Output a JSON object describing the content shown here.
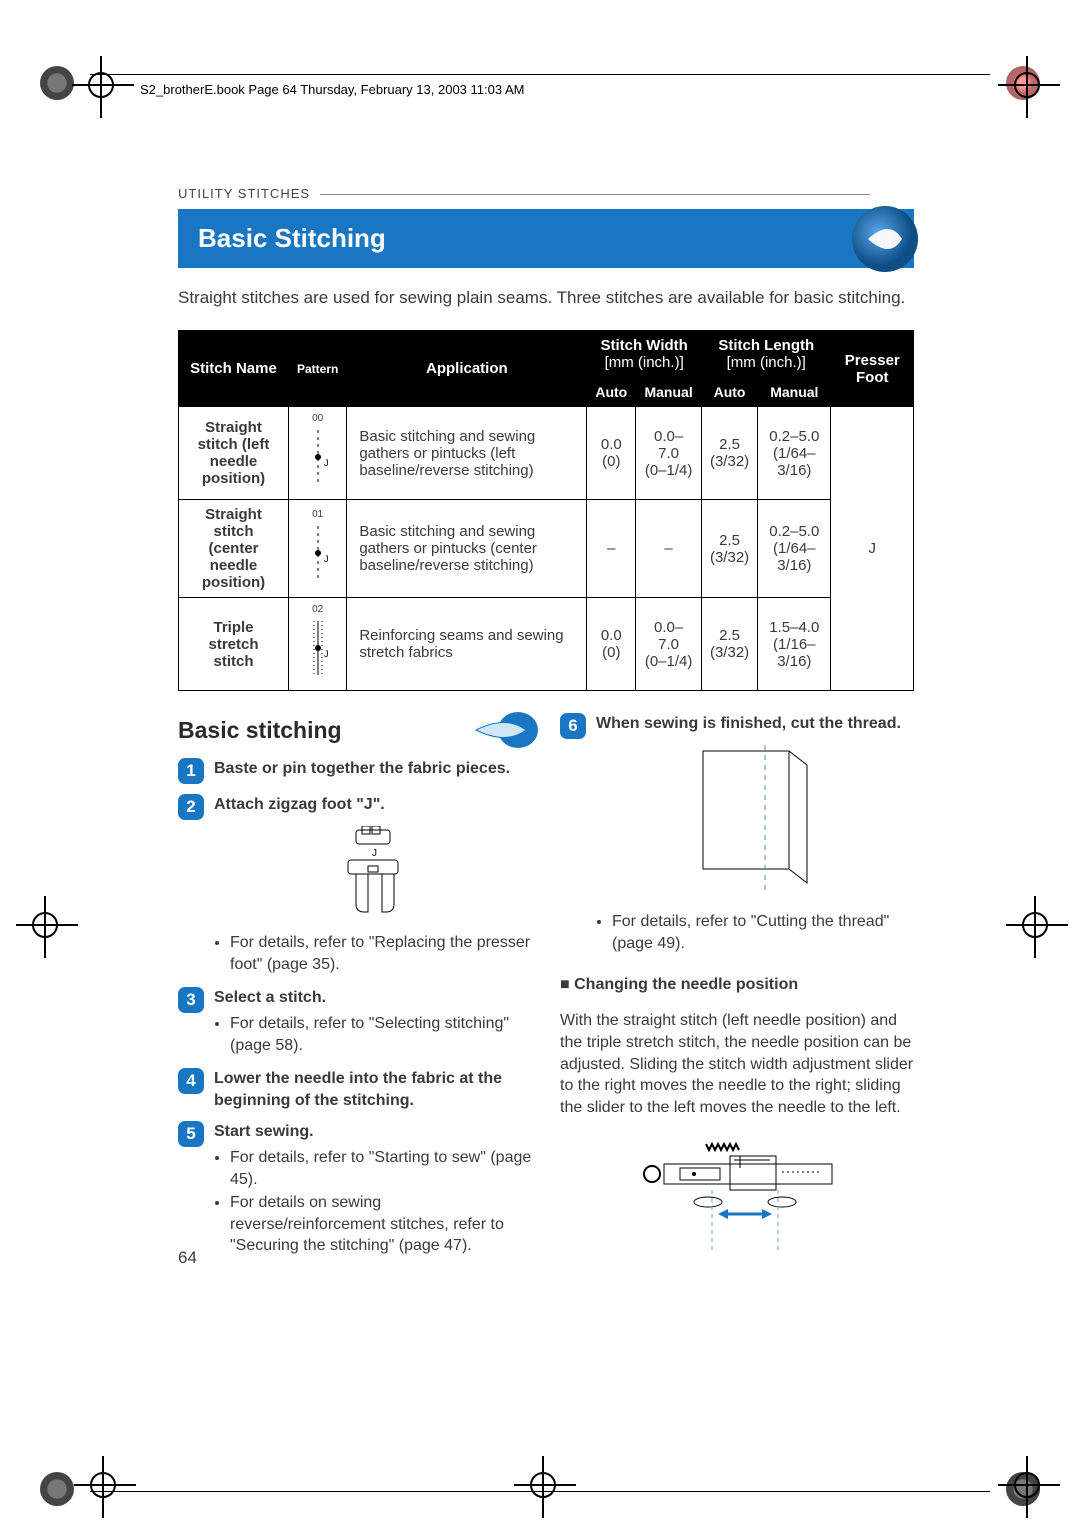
{
  "colors": {
    "blue": "#1976c2",
    "ink": "#3a3a3a"
  },
  "bookline": "S2_brotherE.book  Page 64  Thursday, February 13, 2003  11:03 AM",
  "crumb": "UTILITY STITCHES",
  "title": "Basic Stitching",
  "intro": "Straight stitches are used for sewing plain seams. Three stitches are available for basic stitching.",
  "table": {
    "headers": {
      "name": "Stitch Name",
      "pattern": "Pattern",
      "application": "Application",
      "width": "Stitch Width",
      "width_unit": "[mm (inch.)]",
      "length": "Stitch Length",
      "length_unit": "[mm (inch.)]",
      "foot": "Presser Foot",
      "auto": "Auto",
      "manual": "Manual"
    },
    "presser_foot": "J",
    "rows": [
      {
        "name": "Straight stitch (left needle position)",
        "pat_num": "00",
        "app": "Basic stitching and sewing gathers or pintucks (left baseline/reverse stitching)",
        "w_auto": "0.0",
        "w_auto2": "(0)",
        "w_man": "0.0–7.0",
        "w_man2": "(0–1/4)",
        "l_auto": "2.5",
        "l_auto2": "(3/32)",
        "l_man": "0.2–5.0",
        "l_man2": "(1/64–3/16)"
      },
      {
        "name": "Straight stitch (center needle position)",
        "pat_num": "01",
        "app": "Basic stitching and sewing gathers or pintucks (center baseline/reverse stitching)",
        "w_auto": "–",
        "w_auto2": "",
        "w_man": "–",
        "w_man2": "",
        "l_auto": "2.5",
        "l_auto2": "(3/32)",
        "l_man": "0.2–5.0",
        "l_man2": "(1/64–3/16)"
      },
      {
        "name": "Triple stretch stitch",
        "pat_num": "02",
        "app": "Reinforcing seams and sewing stretch fabrics",
        "w_auto": "0.0",
        "w_auto2": "(0)",
        "w_man": "0.0–7.0",
        "w_man2": "(0–1/4)",
        "l_auto": "2.5",
        "l_auto2": "(3/32)",
        "l_man": "1.5–4.0",
        "l_man2": "(1/16–3/16)"
      }
    ]
  },
  "subtitle": "Basic stitching",
  "steps_left": [
    {
      "n": "1",
      "title": "Baste or pin together the fabric pieces.",
      "bullets": []
    },
    {
      "n": "2",
      "title": "Attach zigzag foot \"J\".",
      "bullets": [
        "For details, refer to \"Replacing the presser foot\" (page 35)."
      ],
      "fig": "foot"
    },
    {
      "n": "3",
      "title": "Select a stitch.",
      "bullets": [
        "For details, refer to \"Selecting stitching\" (page 58)."
      ]
    },
    {
      "n": "4",
      "title": "Lower the needle into the fabric at the beginning of the stitching.",
      "bullets": []
    },
    {
      "n": "5",
      "title": "Start sewing.",
      "bullets": [
        "For details, refer to \"Starting to sew\" (page 45).",
        "For details on sewing reverse/reinforcement stitches, refer to \"Securing the stitching\" (page 47)."
      ]
    }
  ],
  "steps_right": [
    {
      "n": "6",
      "title": "When sewing is finished, cut the thread.",
      "bullets": [
        "For details, refer to \"Cutting the thread\" (page 49)."
      ],
      "fig": "seam"
    }
  ],
  "needle_section": {
    "title": "Changing the needle position",
    "body": "With the straight stitch (left needle position) and the triple stretch stitch, the needle position can be adjusted. Sliding the stitch width adjustment slider to the right moves the needle to the right; sliding the slider to the left moves the needle to the left."
  },
  "page_number": "64"
}
